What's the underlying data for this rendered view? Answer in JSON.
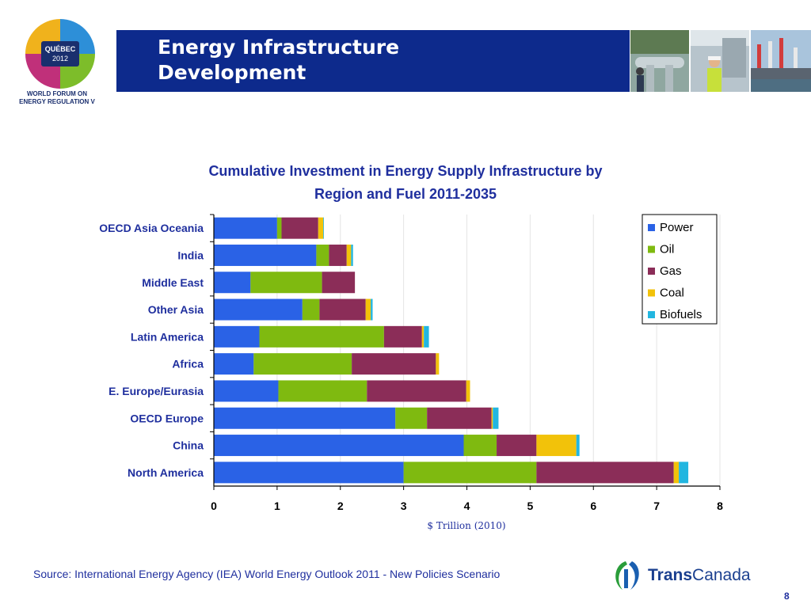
{
  "header": {
    "title_line1": "Energy Infrastructure",
    "title_line2": "Development",
    "logo_line1": "QUÉBEC",
    "logo_line2": "2012",
    "logo_caption_line1": "WORLD FORUM ON",
    "logo_caption_line2": "ENERGY REGULATION V"
  },
  "footer": {
    "source": "Source: International Energy Agency (IEA) World Energy Outlook 2011 - New Policies Scenario",
    "company_bold": "Trans",
    "company_light": "Canada",
    "page_number": "8"
  },
  "colors": {
    "banner": "#0d2a8c",
    "Power": "#2a62e6",
    "Oil": "#7fba10",
    "Gas": "#8b2d58",
    "Coal": "#f2c20a",
    "Biofuels": "#22b6e0"
  },
  "chart_data": {
    "type": "bar",
    "orientation": "horizontal",
    "stacked": true,
    "title_line1": "Cumulative Investment in Energy Supply Infrastructure by",
    "title_line2": "Region and Fuel 2011-2035",
    "xlabel": "$ Trillion (2010)",
    "ylabel": "",
    "xlim": [
      0,
      8
    ],
    "xticks": [
      "0",
      "1",
      "2",
      "3",
      "4",
      "5",
      "6",
      "7",
      "8"
    ],
    "grid": "vertical",
    "legend_position": "top-right",
    "categories": [
      "OECD Asia Oceania",
      "India",
      "Middle East",
      "Other Asia",
      "Latin America",
      "Africa",
      "E. Europe/Eurasia",
      "OECD Europe",
      "China",
      "North America"
    ],
    "series": [
      {
        "name": "Power",
        "values": [
          1.0,
          1.62,
          0.58,
          1.4,
          0.72,
          0.63,
          1.02,
          2.87,
          3.95,
          3.0
        ]
      },
      {
        "name": "Oil",
        "values": [
          0.07,
          0.2,
          1.13,
          0.27,
          1.97,
          1.55,
          1.4,
          0.5,
          0.52,
          2.1
        ]
      },
      {
        "name": "Gas",
        "values": [
          0.58,
          0.28,
          0.52,
          0.73,
          0.6,
          1.33,
          1.57,
          1.02,
          0.63,
          2.17
        ]
      },
      {
        "name": "Coal",
        "values": [
          0.08,
          0.07,
          0.0,
          0.08,
          0.03,
          0.05,
          0.06,
          0.02,
          0.63,
          0.08
        ]
      },
      {
        "name": "Biofuels",
        "values": [
          0.01,
          0.03,
          0.0,
          0.03,
          0.08,
          0.0,
          0.0,
          0.09,
          0.05,
          0.15
        ]
      }
    ]
  }
}
